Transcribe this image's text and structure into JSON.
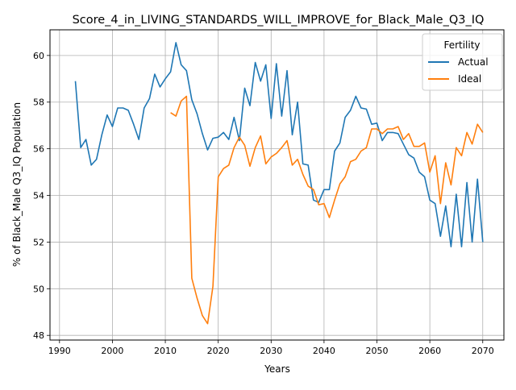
{
  "chart_data": {
    "type": "line",
    "title": "Score_4_in_LIVING_STANDARDS_WILL_IMPROVE_for_Black_Male_Q3_IQ",
    "xlabel": "Years",
    "ylabel": "% of Black_Male Q3_IQ Population",
    "xlim": [
      1988.2,
      2074.0
    ],
    "ylim": [
      47.8,
      61.1
    ],
    "xticks": [
      1990,
      2000,
      2010,
      2020,
      2030,
      2040,
      2050,
      2060,
      2070
    ],
    "yticks": [
      48,
      50,
      52,
      54,
      56,
      58,
      60
    ],
    "grid": true,
    "legend": {
      "title": "Fertility",
      "position": "top-right"
    },
    "series": [
      {
        "name": "Actual",
        "color": "#1f77b4",
        "x": [
          1993,
          1994,
          1995,
          1996,
          1997,
          1998,
          1999,
          2000,
          2001,
          2002,
          2003,
          2004,
          2005,
          2006,
          2007,
          2008,
          2009,
          2010,
          2011,
          2012,
          2013,
          2014,
          2015,
          2016,
          2017,
          2018,
          2019,
          2020,
          2021,
          2022,
          2023,
          2024,
          2025,
          2026,
          2027,
          2028,
          2029,
          2030,
          2031,
          2032,
          2033,
          2034,
          2035,
          2036,
          2037,
          2038,
          2039,
          2040,
          2041,
          2042,
          2043,
          2044,
          2045,
          2046,
          2047,
          2048,
          2049,
          2050,
          2051,
          2052,
          2053,
          2054,
          2055,
          2056,
          2057,
          2058,
          2059,
          2060,
          2061,
          2062,
          2063,
          2064,
          2065,
          2066,
          2067,
          2068,
          2069,
          2070
        ],
        "values": [
          58.9,
          56.05,
          56.4,
          55.3,
          55.55,
          56.6,
          57.45,
          56.95,
          57.75,
          57.75,
          57.65,
          57.05,
          56.4,
          57.75,
          58.15,
          59.2,
          58.65,
          59.0,
          59.3,
          60.55,
          59.6,
          59.35,
          58.1,
          57.5,
          56.65,
          55.95,
          56.45,
          56.5,
          56.7,
          56.4,
          57.35,
          56.35,
          58.6,
          57.85,
          59.7,
          58.9,
          59.6,
          57.3,
          59.65,
          57.4,
          59.35,
          56.6,
          58.0,
          55.35,
          55.3,
          53.8,
          53.7,
          54.25,
          54.25,
          55.9,
          56.25,
          57.35,
          57.65,
          58.25,
          57.75,
          57.7,
          57.05,
          57.1,
          56.35,
          56.7,
          56.7,
          56.65,
          56.2,
          55.75,
          55.6,
          55.0,
          54.8,
          53.8,
          53.65,
          52.25,
          53.55,
          51.8,
          54.05,
          51.8,
          54.55,
          52.0,
          54.7,
          52.0
        ]
      },
      {
        "name": "Ideal",
        "color": "#ff7f0e",
        "x": [
          2011,
          2012,
          2013,
          2014,
          2015,
          2016,
          2017,
          2018,
          2019,
          2020,
          2021,
          2022,
          2023,
          2024,
          2025,
          2026,
          2027,
          2028,
          2029,
          2030,
          2031,
          2032,
          2033,
          2034,
          2035,
          2036,
          2037,
          2038,
          2039,
          2040,
          2041,
          2042,
          2043,
          2044,
          2045,
          2046,
          2047,
          2048,
          2049,
          2050,
          2051,
          2052,
          2053,
          2054,
          2055,
          2056,
          2057,
          2058,
          2059,
          2060,
          2061,
          2062,
          2063,
          2064,
          2065,
          2066,
          2067,
          2068,
          2069,
          2070
        ],
        "values": [
          57.55,
          57.4,
          58.05,
          58.25,
          50.45,
          49.6,
          48.85,
          48.5,
          50.1,
          54.8,
          55.15,
          55.3,
          56.05,
          56.5,
          56.15,
          55.25,
          56.05,
          56.55,
          55.35,
          55.65,
          55.8,
          56.05,
          56.35,
          55.3,
          55.55,
          54.9,
          54.4,
          54.25,
          53.6,
          53.65,
          53.05,
          53.8,
          54.5,
          54.8,
          55.45,
          55.55,
          55.9,
          56.05,
          56.85,
          56.85,
          56.65,
          56.85,
          56.85,
          56.95,
          56.4,
          56.65,
          56.1,
          56.1,
          56.25,
          55.0,
          55.7,
          53.65,
          55.4,
          54.45,
          56.05,
          55.7,
          56.7,
          56.2,
          57.05,
          56.7
        ]
      }
    ]
  }
}
